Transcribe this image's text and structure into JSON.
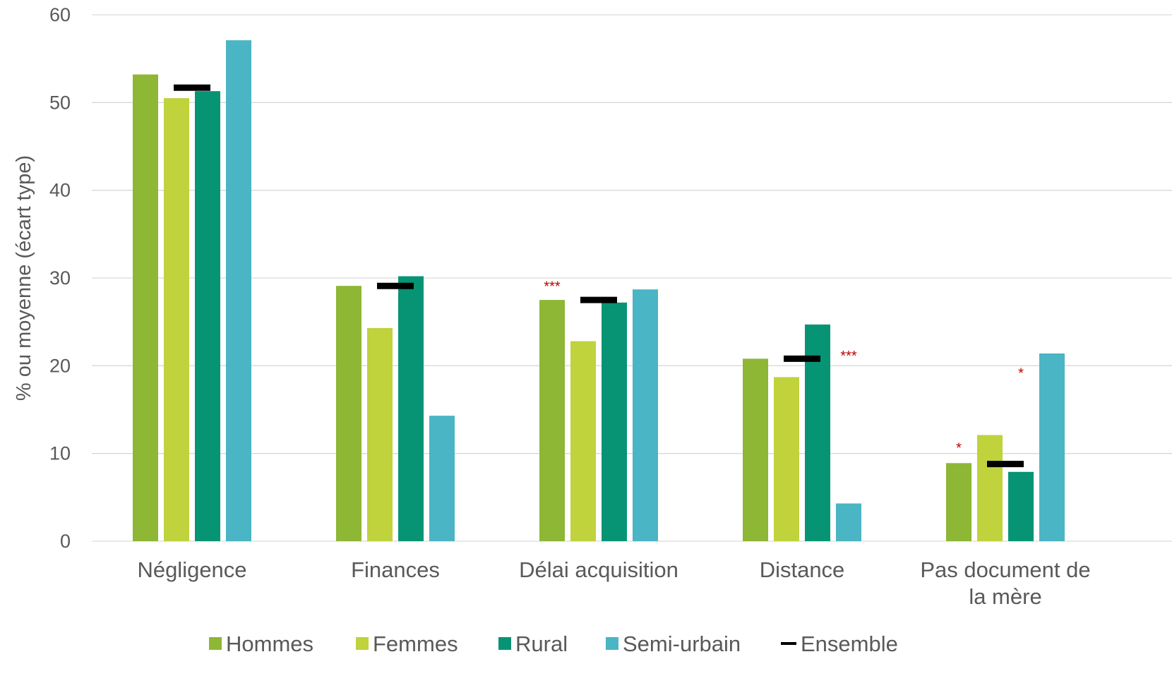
{
  "chart_data": {
    "type": "bar",
    "title": "",
    "xlabel": "",
    "ylabel": "% ou moyenne (écart type)",
    "ylim": [
      0,
      60
    ],
    "yticks": [
      0,
      10,
      20,
      30,
      40,
      50,
      60
    ],
    "grid": true,
    "legend_position": "bottom",
    "categories": [
      [
        "Négligence"
      ],
      [
        "Finances"
      ],
      [
        "Délai acquisition"
      ],
      [
        "Distance"
      ],
      [
        "Pas document de",
        "la mère"
      ]
    ],
    "series": [
      {
        "name": "Hommes",
        "color": "#8DB735",
        "values": [
          53.2,
          29.1,
          27.5,
          20.8,
          8.9
        ]
      },
      {
        "name": "Femmes",
        "color": "#C0D23C",
        "values": [
          50.5,
          24.3,
          22.8,
          18.7,
          12.1
        ]
      },
      {
        "name": "Rural",
        "color": "#079475",
        "values": [
          51.3,
          30.2,
          27.2,
          24.7,
          7.9
        ]
      },
      {
        "name": "Semi-urbain",
        "color": "#4AB5C4",
        "values": [
          57.1,
          14.3,
          28.7,
          4.3,
          21.4
        ]
      }
    ],
    "overall": {
      "name": "Ensemble",
      "color": "#000000",
      "values": [
        51.7,
        29.1,
        27.5,
        20.8,
        8.8
      ]
    },
    "annotations": [
      {
        "category_index": 2,
        "series_index": 0,
        "text": "***",
        "color": "#C00000",
        "y": 28.5
      },
      {
        "category_index": 3,
        "series_index": 3,
        "text": "***",
        "color": "#C00000",
        "y": 20.6
      },
      {
        "category_index": 4,
        "series_index": 0,
        "text": "*",
        "color": "#C00000",
        "y": 10.1
      },
      {
        "category_index": 4,
        "series_index": 2,
        "text": "*",
        "color": "#C00000",
        "y": 18.6
      }
    ]
  }
}
